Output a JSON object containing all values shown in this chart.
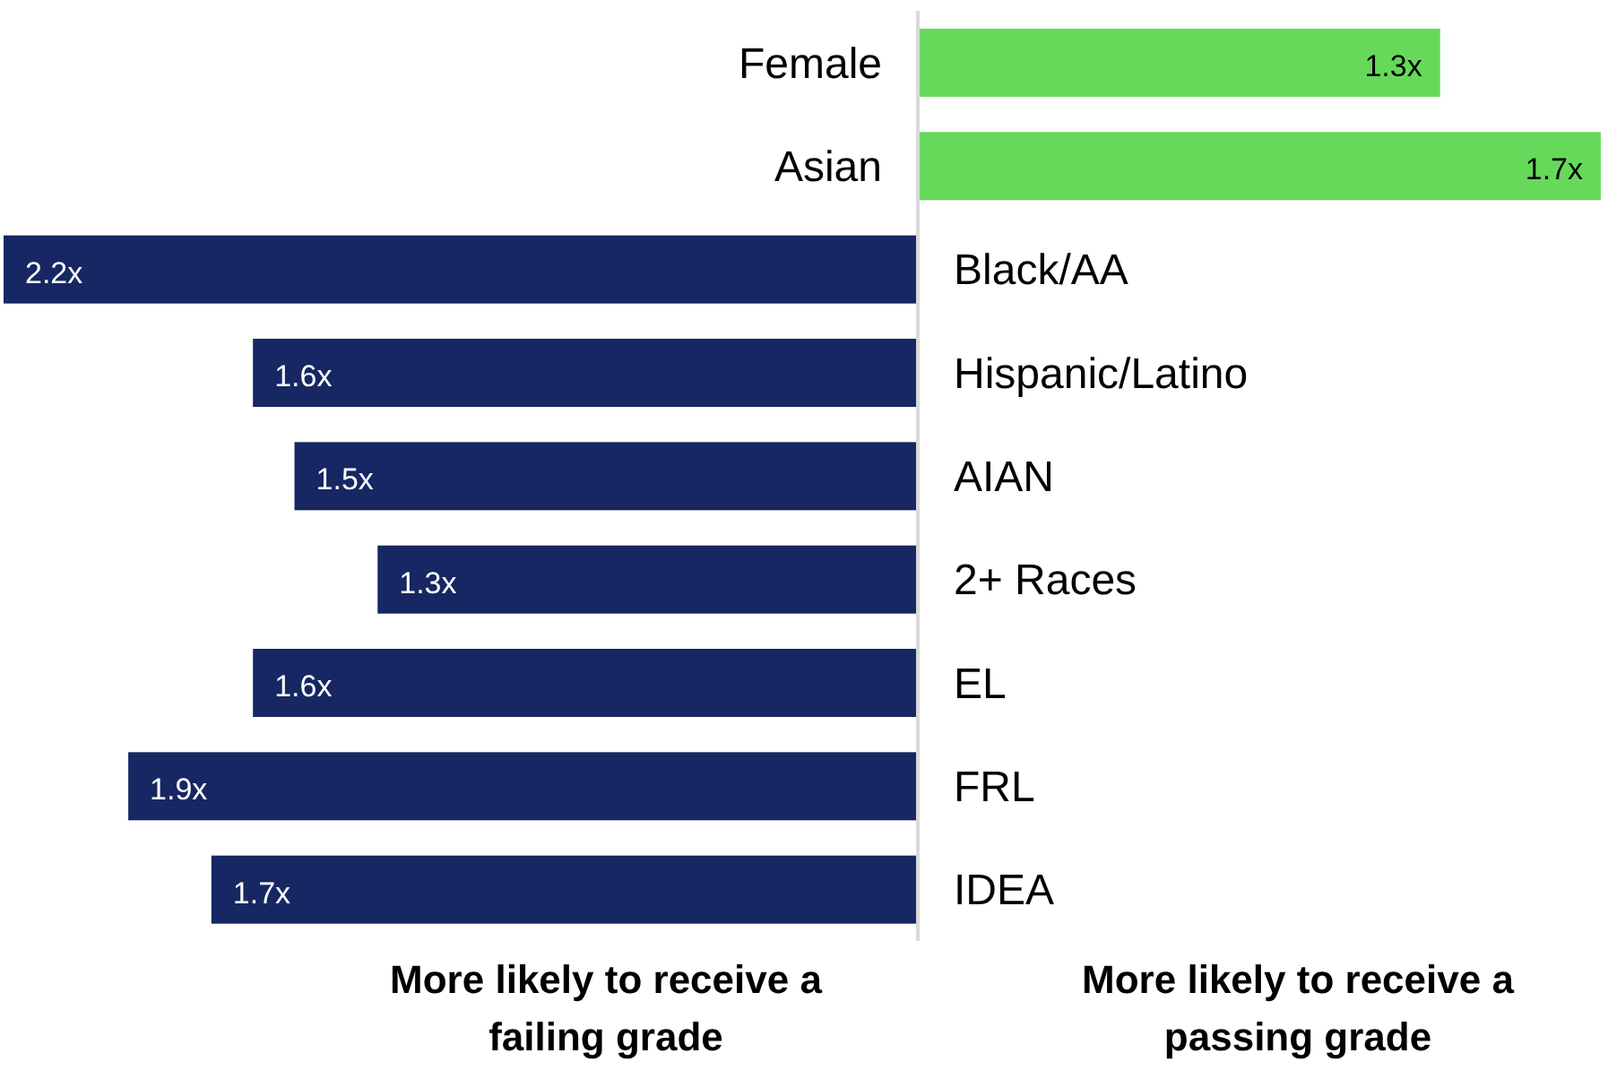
{
  "chart_data": [
    {
      "type": "bar",
      "orientation": "horizontal",
      "xlabel": "More likely to receive a failing grade",
      "categories": [
        null,
        null,
        "Black/AA",
        "Hispanic/Latino",
        "AIAN",
        "2+ Races",
        "EL",
        "FRL",
        "IDEA"
      ],
      "values": [
        null,
        null,
        2.2,
        1.6,
        1.5,
        1.3,
        1.6,
        1.9,
        1.7
      ],
      "value_labels": [
        null,
        null,
        "2.2x",
        "1.6x",
        "1.5x",
        "1.3x",
        "1.6x",
        "1.9x",
        "1.7x"
      ],
      "color": "#162763",
      "xlim": [
        2.2,
        0
      ],
      "tick_labels": "y"
    },
    {
      "type": "bar",
      "orientation": "horizontal",
      "xlabel": "More likely to receive a passing grade",
      "categories": [
        "Female",
        "Asian",
        null,
        null,
        null,
        null,
        null,
        null,
        null
      ],
      "values": [
        1.3,
        1.7,
        null,
        null,
        null,
        null,
        null,
        null,
        null
      ],
      "value_labels": [
        "1.3x",
        "1.7x",
        null,
        null,
        null,
        null,
        null,
        null,
        null
      ],
      "color": "#66d95b",
      "xlim": [
        0,
        1.7
      ],
      "tick_labels": "y"
    }
  ]
}
